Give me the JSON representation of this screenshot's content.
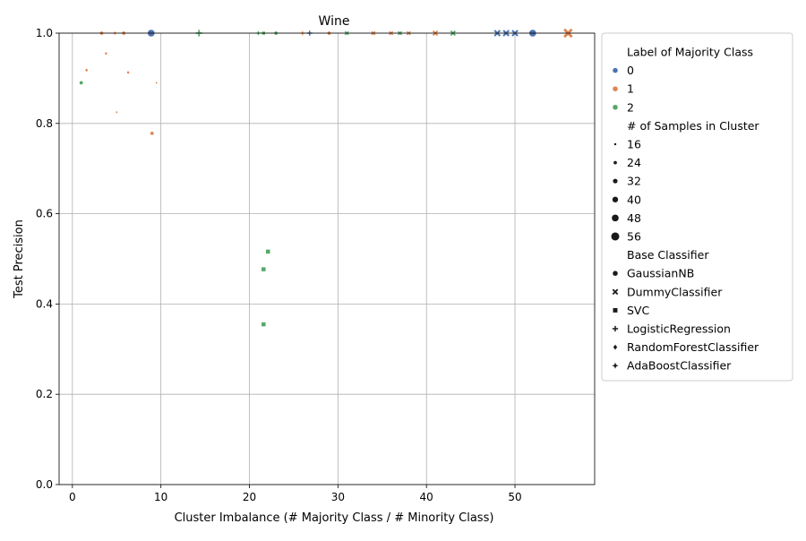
{
  "chart_data": {
    "type": "scatter",
    "title": "Wine",
    "xlabel": "Cluster Imbalance (# Majority Class / # Minority Class)",
    "ylabel": "Test Precision",
    "xlim": [
      -1.5,
      59
    ],
    "ylim": [
      0,
      1
    ],
    "x_ticks": [
      0,
      10,
      20,
      30,
      40,
      50
    ],
    "y_ticks": [
      0.0,
      0.2,
      0.4,
      0.6,
      0.8,
      1.0
    ],
    "y_tick_labels": [
      "0.0",
      "0.2",
      "0.4",
      "0.6",
      "0.8",
      "1.0"
    ],
    "grid": true,
    "legend_placement": "outside-right",
    "hue": {
      "title": "Label of Majority Class",
      "levels": [
        {
          "label": "0",
          "color": "#4c72b0"
        },
        {
          "label": "1",
          "color": "#dd8452"
        },
        {
          "label": "2",
          "color": "#55a868"
        }
      ]
    },
    "size": {
      "title": "# of Samples in Cluster",
      "levels": [
        16,
        24,
        32,
        40,
        48,
        56
      ]
    },
    "style": {
      "title": "Base Classifier",
      "levels": [
        {
          "label": "GaussianNB",
          "marker": "circle"
        },
        {
          "label": "DummyClassifier",
          "marker": "x"
        },
        {
          "label": "SVC",
          "marker": "square"
        },
        {
          "label": "LogisticRegression",
          "marker": "plus"
        },
        {
          "label": "RandomForestClassifier",
          "marker": "diamond"
        },
        {
          "label": "AdaBoostClassifier",
          "marker": "star"
        }
      ]
    },
    "points": [
      {
        "x": 1.0,
        "y": 0.89,
        "hue": 2,
        "marker": "circle",
        "n": 24
      },
      {
        "x": 1.6,
        "y": 0.918,
        "hue": 1,
        "marker": "plus",
        "n": 16
      },
      {
        "x": 3.3,
        "y": 1.0,
        "hue": 1,
        "marker": "circle",
        "n": 24
      },
      {
        "x": 3.8,
        "y": 0.955,
        "hue": 1,
        "marker": "square",
        "n": 16
      },
      {
        "x": 4.8,
        "y": 1.0,
        "hue": 1,
        "marker": "plus",
        "n": 16
      },
      {
        "x": 5.0,
        "y": 0.825,
        "hue": 1,
        "marker": "diamond",
        "n": 16
      },
      {
        "x": 5.8,
        "y": 1.0,
        "hue": 1,
        "marker": "circle",
        "n": 24
      },
      {
        "x": 6.3,
        "y": 0.913,
        "hue": 1,
        "marker": "square",
        "n": 16
      },
      {
        "x": 9.0,
        "y": 0.778,
        "hue": 1,
        "marker": "square",
        "n": 24
      },
      {
        "x": 8.9,
        "y": 1.0,
        "hue": 0,
        "marker": "circle",
        "n": 48
      },
      {
        "x": 9.5,
        "y": 0.89,
        "hue": 1,
        "marker": "diamond",
        "n": 16
      },
      {
        "x": 14.3,
        "y": 1.0,
        "hue": 2,
        "marker": "plus",
        "n": 40
      },
      {
        "x": 21.0,
        "y": 1.0,
        "hue": 2,
        "marker": "plus",
        "n": 24
      },
      {
        "x": 21.6,
        "y": 1.0,
        "hue": 2,
        "marker": "square",
        "n": 24
      },
      {
        "x": 21.6,
        "y": 0.477,
        "hue": 2,
        "marker": "square",
        "n": 32
      },
      {
        "x": 21.6,
        "y": 0.355,
        "hue": 2,
        "marker": "square",
        "n": 32
      },
      {
        "x": 22.1,
        "y": 0.516,
        "hue": 2,
        "marker": "square",
        "n": 32
      },
      {
        "x": 23.0,
        "y": 1.0,
        "hue": 2,
        "marker": "circle",
        "n": 24
      },
      {
        "x": 26.0,
        "y": 1.0,
        "hue": 1,
        "marker": "plus",
        "n": 24
      },
      {
        "x": 26.8,
        "y": 1.0,
        "hue": 0,
        "marker": "plus",
        "n": 32
      },
      {
        "x": 29.0,
        "y": 1.0,
        "hue": 1,
        "marker": "circle",
        "n": 24
      },
      {
        "x": 31.0,
        "y": 1.0,
        "hue": 2,
        "marker": "x",
        "n": 24
      },
      {
        "x": 34.0,
        "y": 1.0,
        "hue": 1,
        "marker": "x",
        "n": 24
      },
      {
        "x": 36.0,
        "y": 1.0,
        "hue": 1,
        "marker": "x",
        "n": 24
      },
      {
        "x": 37.0,
        "y": 1.0,
        "hue": 2,
        "marker": "x",
        "n": 24
      },
      {
        "x": 38.0,
        "y": 1.0,
        "hue": 1,
        "marker": "x",
        "n": 24
      },
      {
        "x": 41.0,
        "y": 1.0,
        "hue": 1,
        "marker": "x",
        "n": 32
      },
      {
        "x": 43.0,
        "y": 1.0,
        "hue": 2,
        "marker": "x",
        "n": 32
      },
      {
        "x": 48.0,
        "y": 1.0,
        "hue": 0,
        "marker": "x",
        "n": 40
      },
      {
        "x": 49.0,
        "y": 1.0,
        "hue": 0,
        "marker": "x",
        "n": 40
      },
      {
        "x": 50.0,
        "y": 1.0,
        "hue": 0,
        "marker": "x",
        "n": 40
      },
      {
        "x": 52.0,
        "y": 1.0,
        "hue": 0,
        "marker": "circle",
        "n": 48
      },
      {
        "x": 56.0,
        "y": 1.0,
        "hue": 1,
        "marker": "x",
        "n": 56
      }
    ]
  }
}
